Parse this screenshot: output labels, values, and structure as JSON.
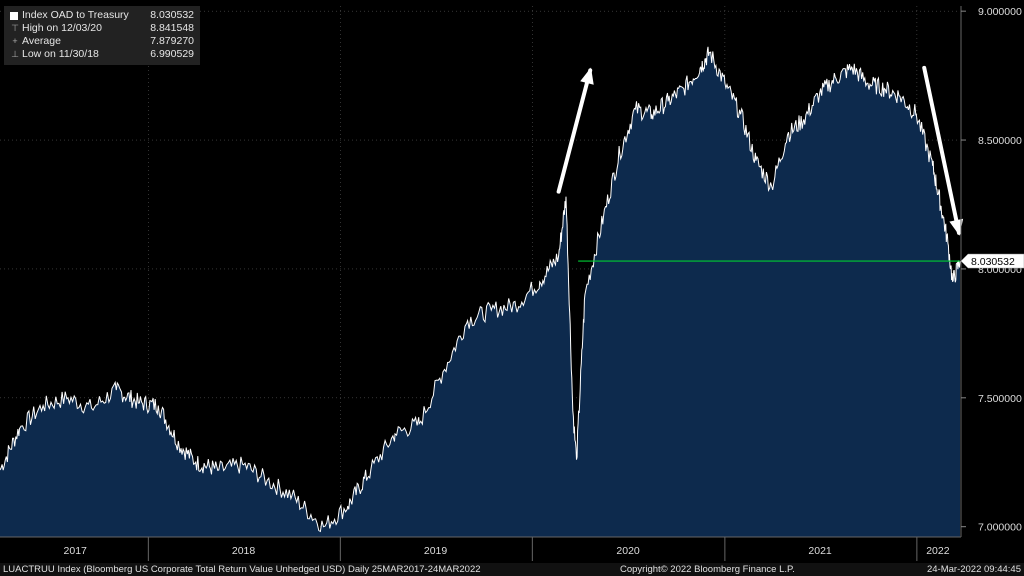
{
  "legend": {
    "series_name": "Index OAD to Treasury",
    "series_value": "8.030532",
    "high_label": "High on 12/03/20",
    "high_value": "8.841548",
    "avg_label": "Average",
    "avg_value": "7.879270",
    "low_label": "Low on 11/30/18",
    "low_value": "6.990529"
  },
  "footer": {
    "left": "LUACTRUU Index (Bloomberg US Corporate Total Return Value Unhedged USD)  Daily 25MAR2017-24MAR2022",
    "center": "Copyright© 2022 Bloomberg Finance L.P.",
    "right": "24-Mar-2022 09:44:45"
  },
  "colors": {
    "area_fill": "#0d2a4d",
    "line": "#ffffff",
    "reference_line": "#00cc33",
    "background": "#000000"
  },
  "chart_data": {
    "type": "area",
    "title": "",
    "series": [
      {
        "name": "Index OAD to Treasury",
        "x": [
          "2017-03-25",
          "2017-05-01",
          "2017-06-15",
          "2017-08-01",
          "2017-09-15",
          "2017-11-01",
          "2017-12-15",
          "2018-01-20",
          "2018-02-28",
          "2018-04-01",
          "2018-05-15",
          "2018-07-01",
          "2018-08-15",
          "2018-10-01",
          "2018-11-30",
          "2019-01-15",
          "2019-02-28",
          "2019-04-15",
          "2019-05-31",
          "2019-07-15",
          "2019-08-31",
          "2019-10-15",
          "2019-11-30",
          "2020-01-15",
          "2020-02-20",
          "2020-03-05",
          "2020-03-18",
          "2020-03-25",
          "2020-04-10",
          "2020-05-15",
          "2020-06-15",
          "2020-07-15",
          "2020-08-15",
          "2020-09-15",
          "2020-10-15",
          "2020-11-15",
          "2020-12-03",
          "2021-01-01",
          "2021-01-31",
          "2021-03-01",
          "2021-03-31",
          "2021-04-30",
          "2021-05-31",
          "2021-06-30",
          "2021-07-31",
          "2021-08-31",
          "2021-09-30",
          "2021-10-31",
          "2021-11-30",
          "2021-12-31",
          "2022-01-31",
          "2022-02-20",
          "2022-03-01",
          "2022-03-10",
          "2022-03-24"
        ],
        "y": [
          7.22,
          7.38,
          7.47,
          7.5,
          7.46,
          7.53,
          7.48,
          7.47,
          7.32,
          7.25,
          7.22,
          7.24,
          7.18,
          7.12,
          7.0,
          7.08,
          7.22,
          7.36,
          7.4,
          7.6,
          7.8,
          7.84,
          7.86,
          7.95,
          8.05,
          8.28,
          7.45,
          7.26,
          7.9,
          8.2,
          8.45,
          8.62,
          8.6,
          8.65,
          8.7,
          8.78,
          8.84,
          8.72,
          8.6,
          8.42,
          8.32,
          8.52,
          8.58,
          8.68,
          8.74,
          8.78,
          8.72,
          8.7,
          8.67,
          8.6,
          8.4,
          8.2,
          8.1,
          7.95,
          8.03
        ]
      }
    ],
    "reference_line": {
      "y": 8.030532,
      "label": "8.030532"
    },
    "xlim": [
      "2017-03-25",
      "2022-03-24"
    ],
    "ylim": [
      6.96,
      9.02
    ],
    "yticks": [
      7.0,
      7.5,
      8.0,
      8.5,
      9.0
    ],
    "ytick_labels": [
      "7.000000",
      "7.500000",
      "8.000000",
      "8.500000",
      "9.000000"
    ],
    "xtick_labels": [
      "2017",
      "2018",
      "2019",
      "2020",
      "2021",
      "2022"
    ],
    "xtick_label_dates": [
      "2017-08-15",
      "2018-07-01",
      "2019-07-01",
      "2020-07-01",
      "2021-07-01",
      "2022-02-10"
    ],
    "year_boundaries": [
      "2018-01-01",
      "2019-01-01",
      "2020-01-01",
      "2021-01-01",
      "2022-01-01"
    ],
    "annotations": [
      {
        "type": "arrow",
        "direction": "up",
        "from": [
          "2020-02-20",
          8.3
        ],
        "to": [
          "2020-04-20",
          8.77
        ]
      },
      {
        "type": "arrow",
        "direction": "down",
        "from": [
          "2022-01-15",
          8.78
        ],
        "to": [
          "2022-03-22",
          8.14
        ]
      }
    ],
    "grid": true,
    "legend_position": "top-left"
  }
}
